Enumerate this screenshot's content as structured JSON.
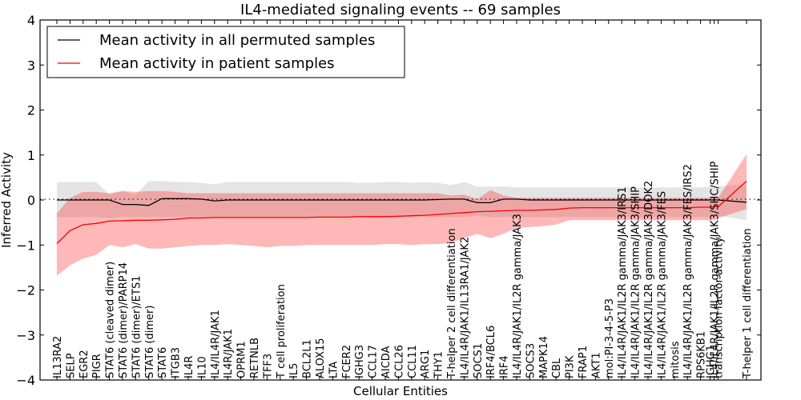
{
  "chart_data": {
    "type": "line",
    "title": "IL4-mediated signaling events -- 69 samples",
    "xlabel": "Cellular Entities",
    "ylabel": "Inferred Activity",
    "ylim": [
      -4,
      4
    ],
    "yticks": [
      4,
      3,
      2,
      1,
      0,
      -1,
      -2,
      -3,
      -4
    ],
    "ytick_labels": [
      "4",
      "3",
      "2",
      "1",
      "0",
      "−1",
      "−2",
      "−3",
      "−4"
    ],
    "grid": false,
    "reference_line": {
      "y": 0,
      "style": "dotted"
    },
    "legend": {
      "placement": "top-left",
      "entries": [
        {
          "label": "Mean activity in all permuted samples",
          "color": "#000000"
        },
        {
          "label": "Mean activity in patient samples",
          "color": "#ff0000"
        }
      ]
    },
    "categories": [
      "IL13RA2",
      "SELP",
      "EGR2",
      "PIGR",
      "STAT6 (cleaved dimer)",
      "STAT6 (dimer)/PARP14",
      "STAT6 (dimer)/ETS1",
      "STAT6 (dimer)",
      "STAT6",
      "ITGB3",
      "IL4R",
      "IL10",
      "IL4/IL4R/JAK1",
      "IL4R/JAK1",
      "OPRM1",
      "RETNLB",
      "TFF3",
      "T cell proliferation",
      "IL5",
      "BCL2L1",
      "ALOX15",
      "LTA",
      "FCER2",
      "IGHG3",
      "CCL17",
      "AICDA",
      "CCL26",
      "CCL11",
      "ARG1",
      "THY1",
      "T-helper 2 cell differentiation",
      "IL4/IL4R/JAK1/IL13RA1/JAK2",
      "SOCS1",
      "IRF4/BCL6",
      "IRF4",
      "IL4/IL4R/JAK1/IL2R gamma/JAK3",
      "SOCS3",
      "MAPK14",
      "CBL",
      "PI3K",
      "FRAP1",
      "AKT1",
      "mol:PI-3-4-5-P3",
      "IL4/IL4R/JAK1/IL2R gamma/JAK3/IRS1",
      "IL4/IL4R/JAK1/IL2R gamma/JAK3/SHIP",
      "IL4/IL4R/JAK1/IL2R gamma/JAK3/DOK2",
      "IL4/IL4R/JAK1/IL2R gamma/JAK3/FES",
      "mitosis",
      "IL4/IL4R/JAK1/IL2R gamma/JAK3/FES/IRS2",
      "RPS6KB1",
      "IGHG1",
      "IL4/IL4R/JAK1/IL2R gamma/JAK3/SHC/SHIP",
      "transcription factor activity",
      "T-helper 1 cell differentiation"
    ],
    "series": [
      {
        "name": "Mean activity in all permuted samples",
        "color": "#000000",
        "values": [
          0.0,
          0.0,
          0.0,
          0.0,
          0.0,
          -0.1,
          -0.1,
          -0.12,
          0.03,
          0.03,
          0.03,
          0.02,
          -0.02,
          0.0,
          0.0,
          0.0,
          0.0,
          0.0,
          0.0,
          0.0,
          0.0,
          0.0,
          0.0,
          0.0,
          0.0,
          0.0,
          0.0,
          0.0,
          0.0,
          0.01,
          0.02,
          0.02,
          -0.06,
          -0.06,
          0.02,
          0.02,
          0.0,
          0.0,
          0.0,
          0.0,
          0.0,
          0.0,
          0.0,
          0.0,
          0.0,
          0.0,
          0.0,
          0.0,
          0.0,
          0.0,
          0.0,
          0.0,
          0.0,
          -0.05
        ],
        "band_upper": [
          0.4,
          0.4,
          0.4,
          0.4,
          0.12,
          0.2,
          0.12,
          0.42,
          0.42,
          0.4,
          0.4,
          0.38,
          0.35,
          0.4,
          0.4,
          0.4,
          0.4,
          0.4,
          0.4,
          0.4,
          0.4,
          0.4,
          0.4,
          0.38,
          0.38,
          0.4,
          0.4,
          0.38,
          0.4,
          0.38,
          0.33,
          0.4,
          0.3,
          0.3,
          0.3,
          0.28,
          0.28,
          0.28,
          0.28,
          0.28,
          0.28,
          0.28,
          0.28,
          0.28,
          0.28,
          0.28,
          0.28,
          0.28,
          0.28,
          0.28,
          0.3,
          0.3,
          0.3,
          0.35
        ],
        "band_lower": [
          -0.38,
          -0.38,
          -0.38,
          -0.38,
          -0.4,
          -0.38,
          -0.38,
          -0.38,
          -0.38,
          -0.38,
          -0.38,
          -0.38,
          -0.38,
          -0.38,
          -0.38,
          -0.38,
          -0.38,
          -0.38,
          -0.38,
          -0.38,
          -0.38,
          -0.38,
          -0.38,
          -0.38,
          -0.38,
          -0.38,
          -0.38,
          -0.38,
          -0.38,
          -0.38,
          -0.38,
          -0.38,
          -0.35,
          -0.38,
          -0.38,
          -0.38,
          -0.38,
          -0.38,
          -0.38,
          -0.38,
          -0.38,
          -0.38,
          -0.38,
          -0.38,
          -0.38,
          -0.38,
          -0.38,
          -0.38,
          -0.38,
          -0.38,
          -0.38,
          -0.38,
          -0.35,
          -0.45
        ]
      },
      {
        "name": "Mean activity in patient samples",
        "color": "#ff0000",
        "values": [
          -0.97,
          -0.68,
          -0.55,
          -0.52,
          -0.47,
          -0.46,
          -0.45,
          -0.45,
          -0.44,
          -0.43,
          -0.4,
          -0.4,
          -0.39,
          -0.39,
          -0.39,
          -0.39,
          -0.39,
          -0.39,
          -0.39,
          -0.39,
          -0.38,
          -0.38,
          -0.38,
          -0.37,
          -0.37,
          -0.37,
          -0.36,
          -0.35,
          -0.34,
          -0.32,
          -0.3,
          -0.28,
          -0.26,
          -0.25,
          -0.24,
          -0.23,
          -0.23,
          -0.22,
          -0.21,
          -0.18,
          -0.17,
          -0.17,
          -0.17,
          -0.17,
          -0.17,
          -0.17,
          -0.17,
          -0.17,
          -0.17,
          -0.16,
          -0.16,
          -0.15,
          -0.15,
          0.42
        ],
        "band_upper": [
          -0.3,
          0.05,
          0.18,
          0.18,
          0.15,
          0.2,
          0.18,
          0.2,
          0.2,
          0.18,
          0.15,
          0.15,
          0.15,
          0.15,
          0.15,
          0.15,
          0.15,
          0.15,
          0.15,
          0.15,
          0.15,
          0.15,
          0.15,
          0.15,
          0.15,
          0.15,
          0.15,
          0.15,
          0.15,
          0.15,
          0.1,
          0.12,
          0.02,
          0.22,
          0.1,
          0.05,
          0.05,
          0.05,
          0.05,
          0.05,
          0.05,
          0.05,
          0.05,
          0.05,
          0.05,
          0.05,
          0.05,
          0.05,
          0.05,
          0.05,
          0.05,
          0.05,
          0.05,
          1.02
        ],
        "band_lower": [
          -1.68,
          -1.45,
          -1.3,
          -1.22,
          -1.0,
          -1.05,
          -0.98,
          -1.08,
          -1.08,
          -1.05,
          -1.02,
          -1.0,
          -1.0,
          -0.98,
          -1.0,
          -1.02,
          -1.05,
          -1.02,
          -1.02,
          -1.0,
          -1.0,
          -1.0,
          -1.0,
          -1.0,
          -1.0,
          -0.98,
          -0.98,
          -1.0,
          -0.98,
          -0.98,
          -0.95,
          -0.85,
          -0.75,
          -0.85,
          -0.75,
          -0.62,
          -0.6,
          -0.58,
          -0.55,
          -0.45,
          -0.45,
          -0.45,
          -0.45,
          -0.45,
          -0.45,
          -0.45,
          -0.45,
          -0.45,
          -0.45,
          -0.45,
          -0.45,
          -0.45,
          -0.4,
          -0.2
        ]
      }
    ]
  }
}
